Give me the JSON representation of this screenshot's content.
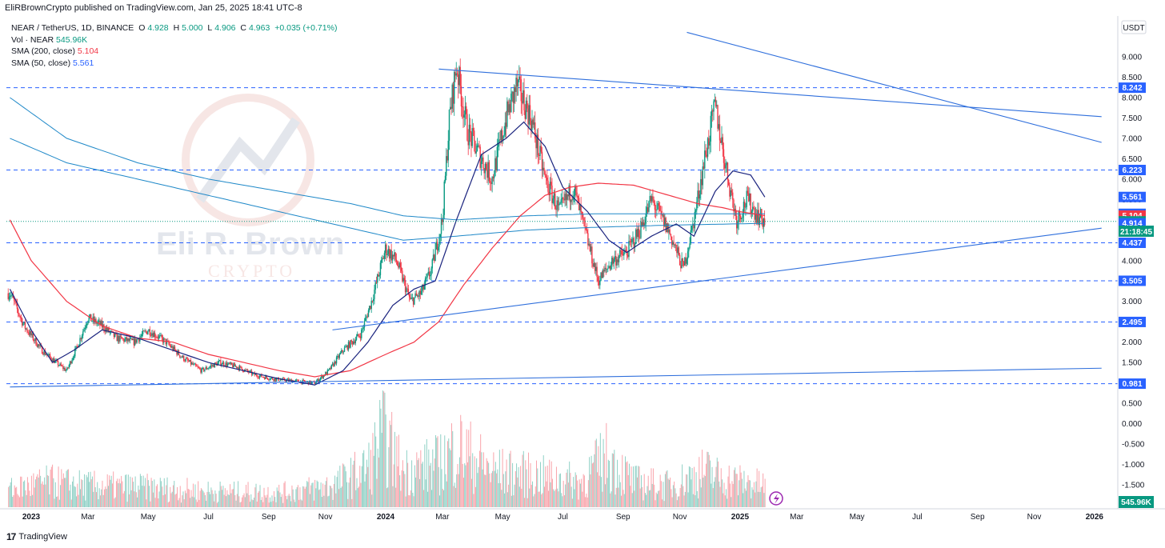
{
  "header": {
    "publisher_text": "EliRBrownCrypto published on TradingView.com, Jan 25, 2025 18:41 UTC-8"
  },
  "legend": {
    "symbol": "NEAR / TetherUS, 1D, BINANCE",
    "o_label": "O",
    "o_value": "4.928",
    "h_label": "H",
    "h_value": "5.000",
    "l_label": "L",
    "l_value": "4.906",
    "c_label": "C",
    "c_value": "4.963",
    "change": "+0.035 (+0.71%)",
    "vol_label": "Vol · NEAR",
    "vol_value": "545.96K",
    "sma200_label": "SMA (200, close)",
    "sma200_value": "5.104",
    "sma50_label": "SMA (50, close)",
    "sma50_value": "5.561"
  },
  "watermark": {
    "line1": "Eli R. Brown",
    "line2": "CRYPTO"
  },
  "axis": {
    "currency": "USDT",
    "volume_badge": "545.96K",
    "countdown": "21:18:45"
  },
  "footer": {
    "logo": "TradingView"
  },
  "colors": {
    "up": "#089981",
    "down": "#f23645",
    "sma50": "#2962ff",
    "sma200": "#f23645",
    "levels": "#2962ff",
    "long_ma": "#1e88c8",
    "trendline": "#2f6fdc"
  },
  "chart_data": {
    "type": "candlestick",
    "title": "NEAR / TetherUS, 1D, BINANCE",
    "y_ticks": [
      "9.000",
      "8.500",
      "8.000",
      "7.500",
      "7.000",
      "6.500",
      "6.000",
      "5.500",
      "5.000",
      "4.500",
      "4.000",
      "3.500",
      "3.000",
      "2.500",
      "2.000",
      "1.500",
      "1.000",
      "0.500",
      "0.000",
      "-0.500",
      "-1.000",
      "-1.500"
    ],
    "y_tick_values": [
      9,
      8.5,
      8,
      7.5,
      7,
      6.5,
      6,
      5.5,
      5,
      4.5,
      4,
      3.5,
      3,
      2.5,
      2,
      1.5,
      1,
      0.5,
      0,
      -0.5,
      -1,
      -1.5
    ],
    "x_ticks": [
      "2023",
      "Mar",
      "May",
      "Jul",
      "Sep",
      "Nov",
      "2024",
      "Mar",
      "May",
      "Jul",
      "Sep",
      "Nov",
      "2025",
      "Mar",
      "May",
      "Jul",
      "Sep",
      "Nov",
      "2026"
    ],
    "x_tick_values": [
      2023.0,
      2023.16,
      2023.33,
      2023.5,
      2023.67,
      2023.83,
      2024.0,
      2024.16,
      2024.33,
      2024.5,
      2024.67,
      2024.83,
      2025.0,
      2025.16,
      2025.33,
      2025.5,
      2025.67,
      2025.83,
      2026.0
    ],
    "horizontal_levels": [
      8.242,
      6.223,
      4.437,
      3.505,
      2.495,
      0.981
    ],
    "price_tags": [
      {
        "label": "8.242",
        "value": 8.242,
        "color": "#2962ff"
      },
      {
        "label": "6.223",
        "value": 6.223,
        "color": "#2962ff"
      },
      {
        "label": "5.561",
        "value": 5.561,
        "color": "#2962ff"
      },
      {
        "label": "5.148",
        "value": 5.148,
        "color": "#2962ff"
      },
      {
        "label": "5.104",
        "value": 5.104,
        "color": "#f23645"
      },
      {
        "label": "4.963",
        "value": 4.963,
        "color": "#089981"
      },
      {
        "label": "4.914",
        "value": 4.914,
        "color": "#2962ff"
      },
      {
        "label": "4.437",
        "value": 4.437,
        "color": "#2962ff"
      },
      {
        "label": "3.505",
        "value": 3.505,
        "color": "#2962ff"
      },
      {
        "label": "2.495",
        "value": 2.495,
        "color": "#2962ff"
      },
      {
        "label": "0.981",
        "value": 0.981,
        "color": "#2962ff"
      }
    ],
    "trendlines": [
      {
        "from": [
          2024.15,
          8.7
        ],
        "to": [
          2024.87,
          8.25
        ],
        "extend": true
      },
      {
        "from": [
          2024.85,
          9.6
        ],
        "to": [
          2025.63,
          7.8
        ],
        "extend": true
      },
      {
        "from": [
          2023.85,
          2.3
        ],
        "to": [
          2024.85,
          3.45
        ],
        "extend": true
      },
      {
        "from": [
          2022.94,
          0.9
        ],
        "to": [
          2025.08,
          1.22
        ],
        "extend": true
      }
    ],
    "close_anchors": [
      [
        2022.94,
        3.2
      ],
      [
        2022.98,
        2.4
      ],
      [
        2023.03,
        1.8
      ],
      [
        2023.07,
        1.5
      ],
      [
        2023.1,
        1.3
      ],
      [
        2023.13,
        1.9
      ],
      [
        2023.16,
        2.6
      ],
      [
        2023.2,
        2.4
      ],
      [
        2023.24,
        2.1
      ],
      [
        2023.29,
        2.0
      ],
      [
        2023.33,
        2.3
      ],
      [
        2023.38,
        2.0
      ],
      [
        2023.43,
        1.6
      ],
      [
        2023.48,
        1.3
      ],
      [
        2023.53,
        1.5
      ],
      [
        2023.58,
        1.4
      ],
      [
        2023.63,
        1.2
      ],
      [
        2023.68,
        1.1
      ],
      [
        2023.74,
        1.05
      ],
      [
        2023.8,
        1.0
      ],
      [
        2023.84,
        1.3
      ],
      [
        2023.88,
        1.8
      ],
      [
        2023.93,
        2.2
      ],
      [
        2023.96,
        3.0
      ],
      [
        2024.0,
        4.3
      ],
      [
        2024.03,
        4.0
      ],
      [
        2024.07,
        3.0
      ],
      [
        2024.1,
        3.2
      ],
      [
        2024.13,
        3.8
      ],
      [
        2024.16,
        5.0
      ],
      [
        2024.18,
        7.5
      ],
      [
        2024.2,
        8.8
      ],
      [
        2024.23,
        7.2
      ],
      [
        2024.27,
        6.5
      ],
      [
        2024.3,
        6.0
      ],
      [
        2024.34,
        7.5
      ],
      [
        2024.37,
        8.3
      ],
      [
        2024.41,
        7.5
      ],
      [
        2024.45,
        6.0
      ],
      [
        2024.49,
        5.2
      ],
      [
        2024.53,
        5.8
      ],
      [
        2024.56,
        4.8
      ],
      [
        2024.6,
        3.5
      ],
      [
        2024.64,
        4.0
      ],
      [
        2024.68,
        4.2
      ],
      [
        2024.72,
        4.8
      ],
      [
        2024.75,
        5.5
      ],
      [
        2024.8,
        4.7
      ],
      [
        2024.84,
        3.8
      ],
      [
        2024.87,
        5.0
      ],
      [
        2024.9,
        6.5
      ],
      [
        2024.93,
        7.8
      ],
      [
        2024.96,
        6.3
      ],
      [
        2024.99,
        5.0
      ],
      [
        2025.02,
        5.5
      ],
      [
        2025.05,
        5.1
      ],
      [
        2025.07,
        4.96
      ]
    ],
    "sma50_anchors": [
      [
        2022.94,
        3.3
      ],
      [
        2023.0,
        2.3
      ],
      [
        2023.06,
        1.5
      ],
      [
        2023.12,
        1.8
      ],
      [
        2023.2,
        2.3
      ],
      [
        2023.3,
        2.1
      ],
      [
        2023.4,
        1.8
      ],
      [
        2023.5,
        1.5
      ],
      [
        2023.6,
        1.3
      ],
      [
        2023.7,
        1.1
      ],
      [
        2023.8,
        0.95
      ],
      [
        2023.88,
        1.3
      ],
      [
        2023.95,
        2.0
      ],
      [
        2024.02,
        2.9
      ],
      [
        2024.08,
        3.3
      ],
      [
        2024.14,
        3.5
      ],
      [
        2024.2,
        5.0
      ],
      [
        2024.27,
        6.6
      ],
      [
        2024.34,
        7.0
      ],
      [
        2024.39,
        7.4
      ],
      [
        2024.45,
        6.8
      ],
      [
        2024.5,
        5.8
      ],
      [
        2024.57,
        5.2
      ],
      [
        2024.63,
        4.5
      ],
      [
        2024.68,
        4.2
      ],
      [
        2024.75,
        4.6
      ],
      [
        2024.82,
        4.9
      ],
      [
        2024.87,
        4.6
      ],
      [
        2024.93,
        5.7
      ],
      [
        2024.98,
        6.2
      ],
      [
        2025.03,
        6.1
      ],
      [
        2025.07,
        5.56
      ]
    ],
    "sma200_anchors": [
      [
        2022.94,
        5.0
      ],
      [
        2023.0,
        4.0
      ],
      [
        2023.1,
        3.0
      ],
      [
        2023.2,
        2.4
      ],
      [
        2023.3,
        2.1
      ],
      [
        2023.4,
        2.0
      ],
      [
        2023.5,
        1.7
      ],
      [
        2023.6,
        1.5
      ],
      [
        2023.7,
        1.3
      ],
      [
        2023.8,
        1.15
      ],
      [
        2023.9,
        1.3
      ],
      [
        2024.0,
        1.7
      ],
      [
        2024.08,
        2.0
      ],
      [
        2024.15,
        2.5
      ],
      [
        2024.22,
        3.4
      ],
      [
        2024.3,
        4.3
      ],
      [
        2024.38,
        5.1
      ],
      [
        2024.45,
        5.6
      ],
      [
        2024.52,
        5.8
      ],
      [
        2024.6,
        5.9
      ],
      [
        2024.7,
        5.85
      ],
      [
        2024.8,
        5.6
      ],
      [
        2024.88,
        5.4
      ],
      [
        2024.95,
        5.3
      ],
      [
        2025.0,
        5.2
      ],
      [
        2025.07,
        5.104
      ]
    ],
    "long_ma_1_anchors": [
      [
        2022.94,
        8.0
      ],
      [
        2023.1,
        7.0
      ],
      [
        2023.3,
        6.4
      ],
      [
        2023.5,
        6.0
      ],
      [
        2023.7,
        5.7
      ],
      [
        2023.9,
        5.4
      ],
      [
        2024.05,
        5.1
      ],
      [
        2024.2,
        5.0
      ],
      [
        2024.4,
        5.1
      ],
      [
        2024.6,
        5.15
      ],
      [
        2024.8,
        5.15
      ],
      [
        2025.07,
        5.148
      ]
    ],
    "long_ma_2_anchors": [
      [
        2022.94,
        7.0
      ],
      [
        2023.1,
        6.4
      ],
      [
        2023.3,
        6.0
      ],
      [
        2023.5,
        5.6
      ],
      [
        2023.7,
        5.2
      ],
      [
        2023.9,
        4.8
      ],
      [
        2024.05,
        4.5
      ],
      [
        2024.2,
        4.6
      ],
      [
        2024.4,
        4.75
      ],
      [
        2024.6,
        4.82
      ],
      [
        2024.8,
        4.87
      ],
      [
        2025.07,
        4.914
      ]
    ],
    "volume_peaks": [
      [
        2022.94,
        0.25
      ],
      [
        2023.05,
        0.35
      ],
      [
        2023.15,
        0.3
      ],
      [
        2023.3,
        0.28
      ],
      [
        2023.5,
        0.22
      ],
      [
        2023.7,
        0.2
      ],
      [
        2023.85,
        0.3
      ],
      [
        2023.95,
        0.55
      ],
      [
        2023.99,
        1.0
      ],
      [
        2024.05,
        0.5
      ],
      [
        2024.15,
        0.6
      ],
      [
        2024.2,
        0.85
      ],
      [
        2024.3,
        0.5
      ],
      [
        2024.4,
        0.45
      ],
      [
        2024.55,
        0.35
      ],
      [
        2024.62,
        0.7
      ],
      [
        2024.7,
        0.35
      ],
      [
        2024.8,
        0.3
      ],
      [
        2024.9,
        0.5
      ],
      [
        2024.95,
        0.4
      ],
      [
        2025.07,
        0.3
      ]
    ]
  }
}
